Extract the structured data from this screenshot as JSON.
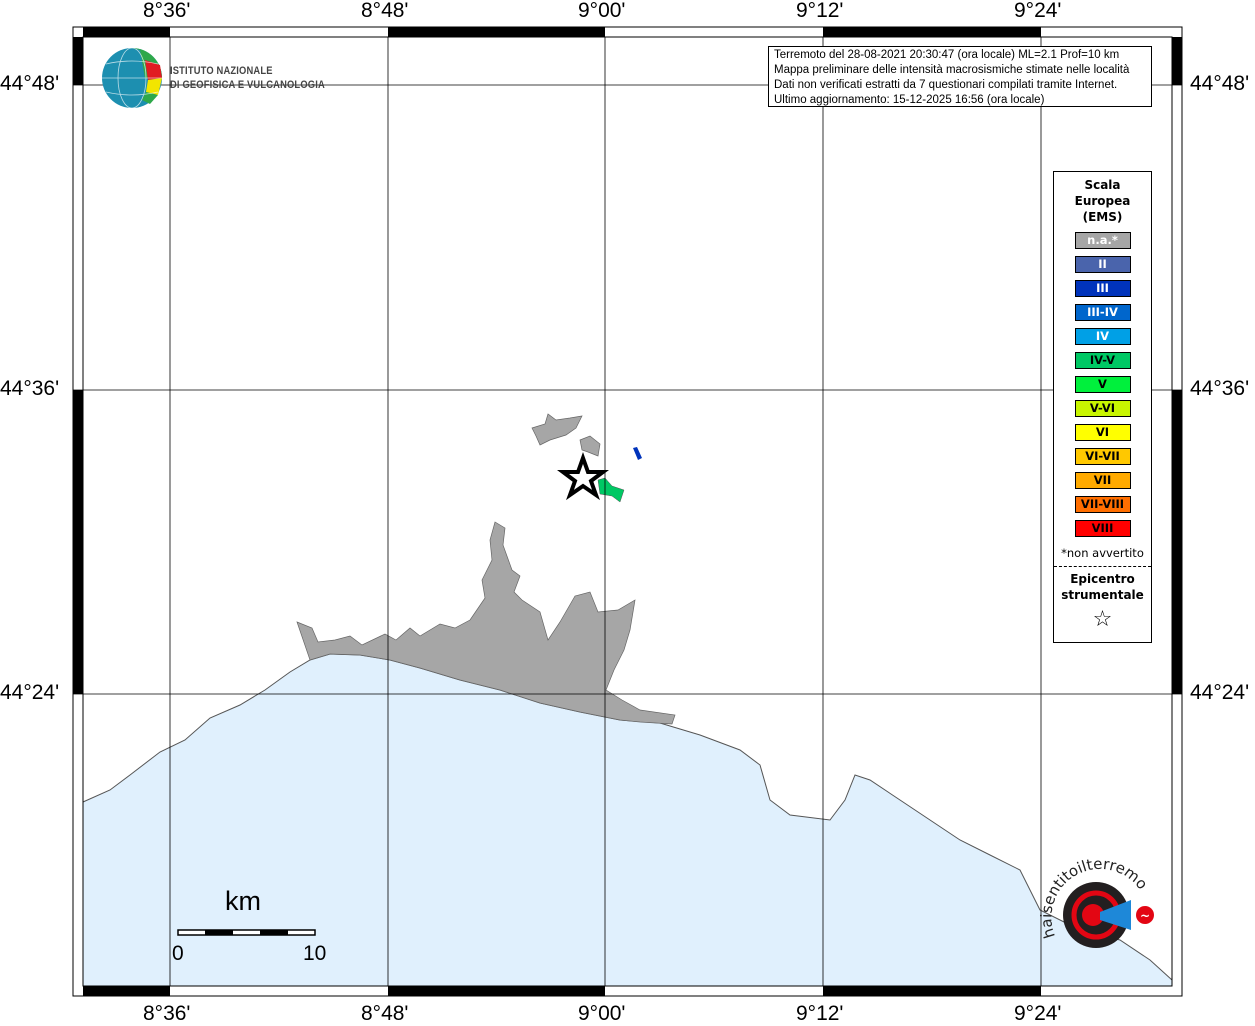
{
  "map": {
    "lon_labels": [
      "8°36'",
      "8°48'",
      "9°00'",
      "9°12'",
      "9°24'"
    ],
    "lat_labels": [
      "44°48'",
      "44°36'",
      "44°24'"
    ],
    "colors": {
      "sea": "#e0f0fd",
      "land_not_felt": "#a6a6a6",
      "intensity_iv_v": "#00c864",
      "intensity_iii": "#0033bb"
    }
  },
  "info": {
    "lines": [
      "Terremoto del 28-08-2021 20:30:47 (ora locale) ML=2.1 Prof=10 km",
      "Mappa preliminare delle intensità macrosismiche stimate nelle località",
      "Dati non verificati estratti da 7 questionari compilati tramite Internet.",
      "Ultimo aggiornamento: 15-12-2025 16:56 (ora locale)"
    ]
  },
  "logo": {
    "ingv_line1": "ISTITUTO NAZIONALE",
    "ingv_line2": "DI GEOFISICA E VULCANOLOGIA",
    "hsit_text": "www.haisentitoilterremoto.it"
  },
  "legend": {
    "title": [
      "Scala",
      "Europea",
      "(EMS)"
    ],
    "items": [
      {
        "label": "n.a.*",
        "color": "#a6a6a6",
        "text": "#ffffff"
      },
      {
        "label": "II",
        "color": "#4a64ac",
        "text": "#ffffff"
      },
      {
        "label": "III",
        "color": "#0033bb",
        "text": "#ffffff"
      },
      {
        "label": "III-IV",
        "color": "#0066cc",
        "text": "#ffffff"
      },
      {
        "label": "IV",
        "color": "#00a0e6",
        "text": "#ffffff"
      },
      {
        "label": "IV-V",
        "color": "#00c864",
        "text": "#000000"
      },
      {
        "label": "V",
        "color": "#00f03c",
        "text": "#000000"
      },
      {
        "label": "V-VI",
        "color": "#c8f500",
        "text": "#000000"
      },
      {
        "label": "VI",
        "color": "#ffff00",
        "text": "#000000"
      },
      {
        "label": "VI-VII",
        "color": "#ffc800",
        "text": "#000000"
      },
      {
        "label": "VII",
        "color": "#ffaa00",
        "text": "#000000"
      },
      {
        "label": "VII-VIII",
        "color": "#ff6e00",
        "text": "#000000"
      },
      {
        "label": "VIII",
        "color": "#ff0000",
        "text": "#000000"
      }
    ],
    "note": "*non avvertito",
    "epicenter_label": [
      "Epicentro",
      "strumentale"
    ],
    "epicenter_symbol": "☆"
  },
  "scale_bar": {
    "unit": "km",
    "start": "0",
    "end": "10"
  }
}
